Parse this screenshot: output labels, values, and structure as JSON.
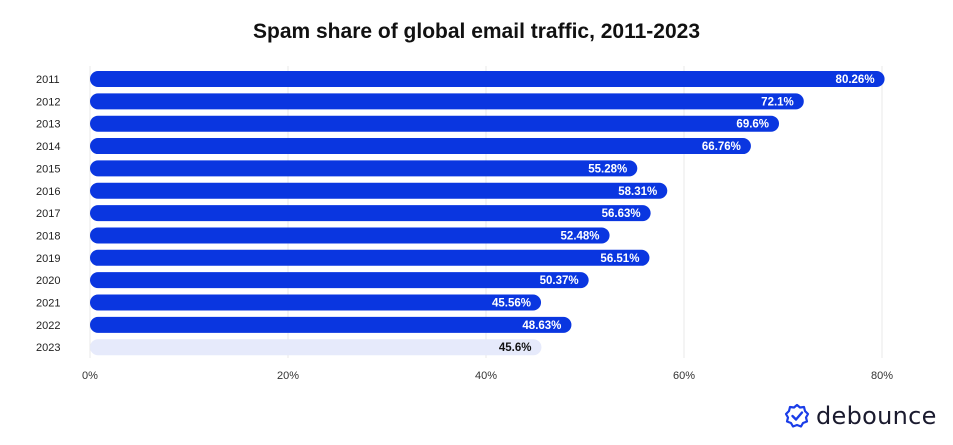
{
  "chart_data": {
    "type": "bar",
    "orientation": "horizontal",
    "title": "Spam share of global email traffic, 2011-2023",
    "categories": [
      "2011",
      "2012",
      "2013",
      "2014",
      "2015",
      "2016",
      "2017",
      "2018",
      "2019",
      "2020",
      "2021",
      "2022",
      "2023"
    ],
    "values": [
      80.26,
      72.1,
      69.6,
      66.76,
      55.28,
      58.31,
      56.63,
      52.48,
      56.51,
      50.37,
      45.56,
      48.63,
      45.6
    ],
    "value_labels": [
      "80.26%",
      "72.1%",
      "69.6%",
      "66.76%",
      "55.28%",
      "58.31%",
      "56.63%",
      "52.48%",
      "56.51%",
      "50.37%",
      "45.56%",
      "48.63%",
      "45.6%"
    ],
    "xlim": [
      0,
      80
    ],
    "x_ticks": [
      0,
      20,
      40,
      60,
      80
    ],
    "x_tick_labels": [
      "0%",
      "20%",
      "40%",
      "60%",
      "80%"
    ],
    "grid": true,
    "colors": {
      "bar": "#0a36e0",
      "highlight_bar": "#e6eafb",
      "label_on_bar": "#ffffff",
      "label_on_highlight": "#111111",
      "grid": "#e8e8e8"
    },
    "highlight_index": 12
  },
  "brand": {
    "name": "debounce",
    "icon": "check-badge-icon",
    "color": "#1a3de8"
  }
}
